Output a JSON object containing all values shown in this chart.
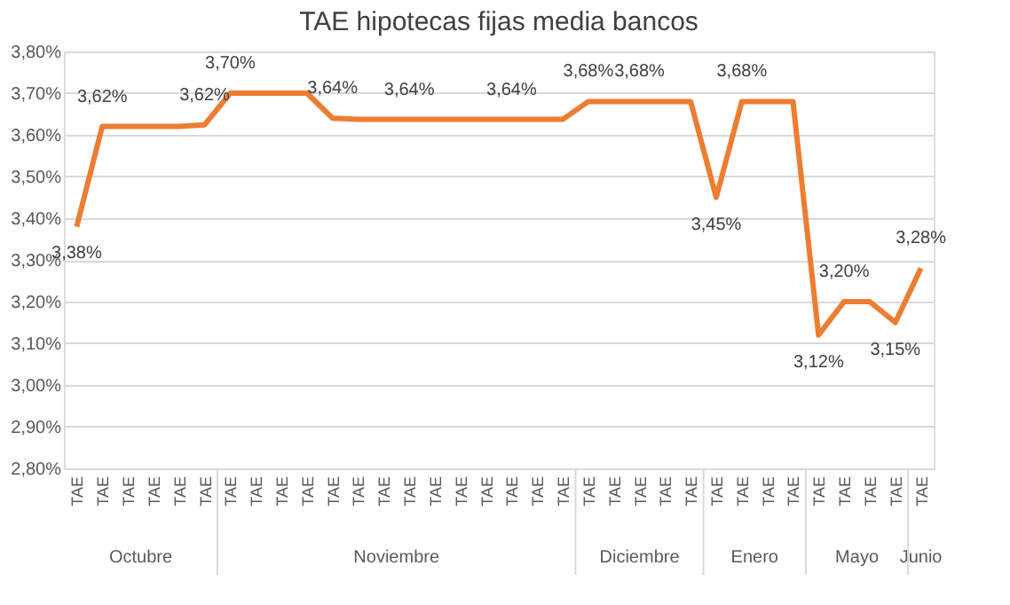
{
  "chart_data": {
    "type": "line",
    "title": "TAE hipotecas fijas media bancos",
    "categories": [
      "TAE",
      "TAE",
      "TAE",
      "TAE",
      "TAE",
      "TAE",
      "TAE",
      "TAE",
      "TAE",
      "TAE",
      "TAE",
      "TAE",
      "TAE",
      "TAE",
      "TAE",
      "TAE",
      "TAE",
      "TAE",
      "TAE",
      "TAE",
      "TAE",
      "TAE",
      "TAE",
      "TAE",
      "TAE",
      "TAE",
      "TAE",
      "TAE",
      "TAE",
      "TAE",
      "TAE",
      "TAE",
      "TAE",
      "TAE"
    ],
    "series": [
      {
        "color": "#ed7d31",
        "values": [
          3.38,
          3.62,
          3.62,
          3.62,
          3.62,
          3.624,
          3.7,
          3.7,
          3.7,
          3.7,
          3.64,
          3.637,
          3.637,
          3.637,
          3.637,
          3.637,
          3.637,
          3.637,
          3.637,
          3.637,
          3.68,
          3.68,
          3.68,
          3.68,
          3.68,
          3.45,
          3.68,
          3.68,
          3.68,
          3.12,
          3.2,
          3.2,
          3.15,
          3.28
        ],
        "value_labels": [
          "3,38%",
          "3,62%",
          null,
          null,
          null,
          "3,62%",
          "3,70%",
          null,
          null,
          null,
          "3,64%",
          null,
          null,
          "3,64%",
          null,
          null,
          null,
          "3,64%",
          null,
          null,
          "3,68%",
          null,
          "3,68%",
          null,
          null,
          "3,45%",
          "3,68%",
          null,
          null,
          "3,12%",
          "3,20%",
          null,
          "3,15%",
          "3,28%"
        ]
      }
    ],
    "annotations": [
      "Octubre",
      "Noviembre",
      "Diciembre",
      "Enero",
      "Mayo",
      "Junio"
    ],
    "ylim": [
      2.8,
      3.8
    ],
    "yticks": [
      {
        "value": 2.8,
        "label": "2,80%"
      },
      {
        "value": 2.9,
        "label": "2,90%"
      },
      {
        "value": 3.0,
        "label": "3,00%"
      },
      {
        "value": 3.1,
        "label": "3,10%"
      },
      {
        "value": 3.2,
        "label": "3,20%"
      },
      {
        "value": 3.3,
        "label": "3,30%"
      },
      {
        "value": 3.4,
        "label": "3,40%"
      },
      {
        "value": 3.5,
        "label": "3,50%"
      },
      {
        "value": 3.6,
        "label": "3,60%"
      },
      {
        "value": 3.7,
        "label": "3,70%"
      },
      {
        "value": 3.8,
        "label": "3,80%"
      }
    ],
    "grid": "y",
    "marker": "none",
    "line_style": "solid"
  }
}
